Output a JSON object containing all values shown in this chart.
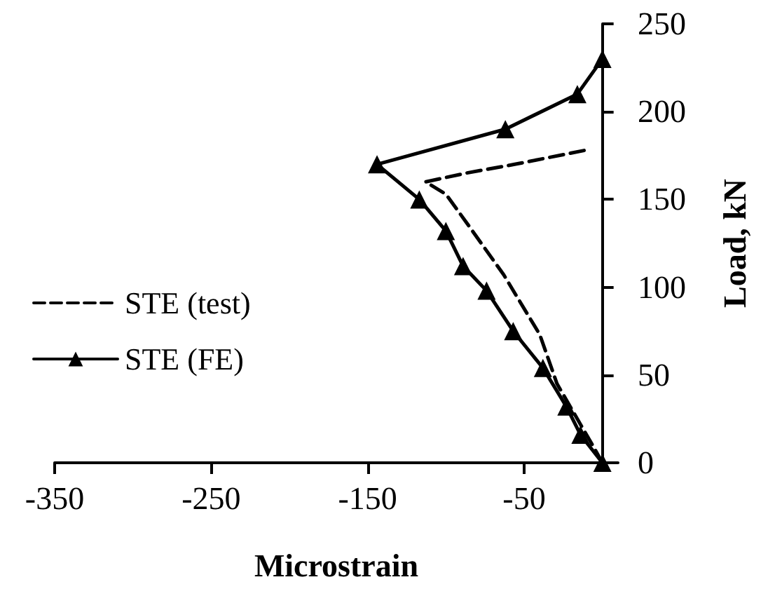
{
  "chart_data": {
    "type": "line",
    "xlabel": "Microstrain",
    "ylabel": "Load, kN",
    "xlim": [
      -350,
      10
    ],
    "xticks": [
      -350,
      -250,
      -150,
      -50
    ],
    "ylim": [
      0,
      250
    ],
    "yticks": [
      0,
      50,
      100,
      150,
      200,
      250
    ],
    "grid": false,
    "legend": "left",
    "series": [
      {
        "name": "STE (test)",
        "color": "#000000",
        "line_style": "dashed",
        "marker": "none",
        "x": [
          0,
          -5,
          -29,
          -40,
          -63,
          -87,
          -100,
          -113,
          -87,
          -56,
          -11
        ],
        "values": [
          0,
          8,
          45,
          73,
          107,
          137,
          153,
          160,
          165,
          170,
          178
        ]
      },
      {
        "name": "STE (FE)",
        "color": "#000000",
        "line_style": "solid",
        "marker": "triangle",
        "x": [
          0,
          -14,
          -23,
          -38,
          -57,
          -74,
          -89,
          -100,
          -117,
          -144,
          -62,
          -16,
          0
        ],
        "values": [
          0,
          16,
          32,
          54,
          75,
          98,
          112,
          132,
          150,
          170,
          190,
          210,
          230
        ]
      }
    ]
  }
}
